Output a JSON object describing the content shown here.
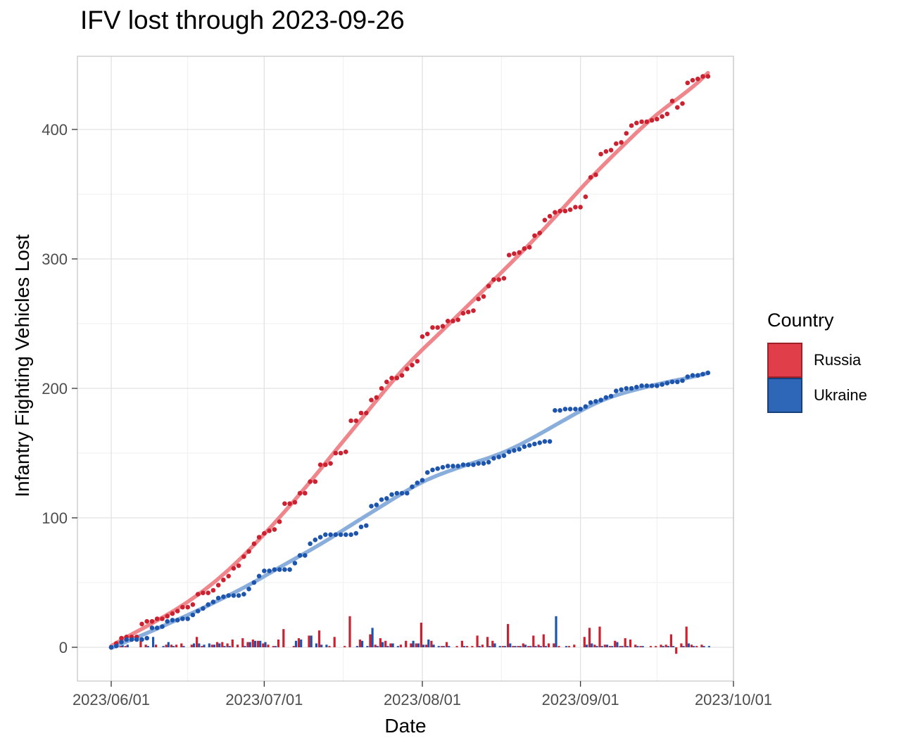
{
  "chart_data": {
    "type": "line",
    "title": "IFV lost through 2023-09-26",
    "xlabel": "Date",
    "ylabel": "Infantry Fighting Vehicles Lost",
    "x_tick_labels": [
      "2023/06/01",
      "2023/07/01",
      "2023/08/01",
      "2023/09/01",
      "2023/10/01"
    ],
    "y_tick_labels": [
      "0",
      "100",
      "200",
      "300",
      "400"
    ],
    "y_minor_ticks": [
      50,
      150,
      250,
      350
    ],
    "ylim": [
      -26,
      456
    ],
    "x_start": "2023-06-01",
    "x_end": "2023-10-01",
    "grid": true,
    "legend": {
      "title": "Country",
      "position": "right",
      "entries": [
        {
          "label": "Russia",
          "fill": "#E03E48",
          "border": "#9F2028"
        },
        {
          "label": "Ukraine",
          "fill": "#2E66B8",
          "border": "#164079"
        }
      ]
    },
    "bar_note": "bars are daily increments (diff of cumulative), dodged red left / blue right",
    "dates": [
      "2023-06-01",
      "2023-06-02",
      "2023-06-03",
      "2023-06-04",
      "2023-06-05",
      "2023-06-06",
      "2023-06-07",
      "2023-06-08",
      "2023-06-09",
      "2023-06-10",
      "2023-06-11",
      "2023-06-12",
      "2023-06-13",
      "2023-06-14",
      "2023-06-15",
      "2023-06-16",
      "2023-06-17",
      "2023-06-18",
      "2023-06-19",
      "2023-06-20",
      "2023-06-21",
      "2023-06-22",
      "2023-06-23",
      "2023-06-24",
      "2023-06-25",
      "2023-06-26",
      "2023-06-27",
      "2023-06-28",
      "2023-06-29",
      "2023-06-30",
      "2023-07-01",
      "2023-07-02",
      "2023-07-03",
      "2023-07-04",
      "2023-07-05",
      "2023-07-06",
      "2023-07-07",
      "2023-07-08",
      "2023-07-09",
      "2023-07-10",
      "2023-07-11",
      "2023-07-12",
      "2023-07-13",
      "2023-07-14",
      "2023-07-15",
      "2023-07-16",
      "2023-07-17",
      "2023-07-18",
      "2023-07-19",
      "2023-07-20",
      "2023-07-21",
      "2023-07-22",
      "2023-07-23",
      "2023-07-24",
      "2023-07-25",
      "2023-07-26",
      "2023-07-27",
      "2023-07-28",
      "2023-07-29",
      "2023-07-30",
      "2023-07-31",
      "2023-08-01",
      "2023-08-02",
      "2023-08-03",
      "2023-08-04",
      "2023-08-05",
      "2023-08-06",
      "2023-08-07",
      "2023-08-08",
      "2023-08-09",
      "2023-08-10",
      "2023-08-11",
      "2023-08-12",
      "2023-08-13",
      "2023-08-14",
      "2023-08-15",
      "2023-08-16",
      "2023-08-17",
      "2023-08-18",
      "2023-08-19",
      "2023-08-20",
      "2023-08-21",
      "2023-08-22",
      "2023-08-23",
      "2023-08-24",
      "2023-08-25",
      "2023-08-26",
      "2023-08-27",
      "2023-08-28",
      "2023-08-29",
      "2023-08-30",
      "2023-08-31",
      "2023-09-01",
      "2023-09-02",
      "2023-09-03",
      "2023-09-04",
      "2023-09-05",
      "2023-09-06",
      "2023-09-07",
      "2023-09-08",
      "2023-09-09",
      "2023-09-10",
      "2023-09-11",
      "2023-09-12",
      "2023-09-13",
      "2023-09-14",
      "2023-09-15",
      "2023-09-16",
      "2023-09-17",
      "2023-09-18",
      "2023-09-19",
      "2023-09-20",
      "2023-09-21",
      "2023-09-22",
      "2023-09-23",
      "2023-09-24",
      "2023-09-25",
      "2023-09-26"
    ],
    "series": [
      {
        "name": "Russia",
        "point_color": "#CB2130",
        "smooth_color": "#EF868C",
        "cumulative": [
          0,
          3,
          7,
          8,
          8,
          8,
          18,
          20,
          20,
          22,
          22,
          24,
          26,
          28,
          31,
          31,
          33,
          41,
          42,
          42,
          44,
          48,
          52,
          55,
          61,
          63,
          70,
          74,
          80,
          85,
          88,
          90,
          91,
          97,
          111,
          111,
          112,
          119,
          119,
          128,
          128,
          141,
          141,
          142,
          150,
          150,
          151,
          175,
          175,
          181,
          181,
          191,
          193,
          200,
          205,
          208,
          208,
          210,
          215,
          218,
          221,
          240,
          242,
          247,
          247,
          248,
          252,
          252,
          253,
          258,
          259,
          260,
          269,
          271,
          279,
          284,
          284,
          285,
          303,
          304,
          305,
          308,
          309,
          318,
          320,
          330,
          333,
          336,
          337,
          337,
          338,
          340,
          340,
          348,
          363,
          365,
          381,
          383,
          384,
          389,
          390,
          397,
          403,
          405,
          406,
          406,
          407,
          408,
          410,
          412,
          422,
          417,
          420,
          436,
          438,
          439,
          441,
          441
        ]
      },
      {
        "name": "Ukraine",
        "point_color": "#1E55AC",
        "smooth_color": "#8AAEDC",
        "cumulative": [
          0,
          1,
          4,
          6,
          6,
          6,
          6,
          7,
          15,
          15,
          16,
          20,
          21,
          21,
          22,
          22,
          25,
          28,
          30,
          33,
          35,
          38,
          39,
          40,
          40,
          40,
          41,
          45,
          50,
          55,
          59,
          59,
          60,
          60,
          60,
          60,
          65,
          71,
          71,
          80,
          83,
          85,
          87,
          87,
          87,
          87,
          87,
          87,
          88,
          93,
          94,
          109,
          110,
          114,
          115,
          118,
          119,
          119,
          119,
          124,
          127,
          129,
          135,
          137,
          138,
          139,
          140,
          140,
          140,
          141,
          141,
          141,
          142,
          142,
          143,
          146,
          147,
          148,
          151,
          152,
          153,
          155,
          156,
          157,
          158,
          159,
          159,
          183,
          183,
          184,
          184,
          184,
          184,
          186,
          189,
          190,
          191,
          193,
          194,
          198,
          199,
          200,
          200,
          201,
          202,
          202,
          202,
          202,
          203,
          204,
          205,
          205,
          206,
          209,
          210,
          210,
          211,
          212
        ]
      }
    ]
  }
}
